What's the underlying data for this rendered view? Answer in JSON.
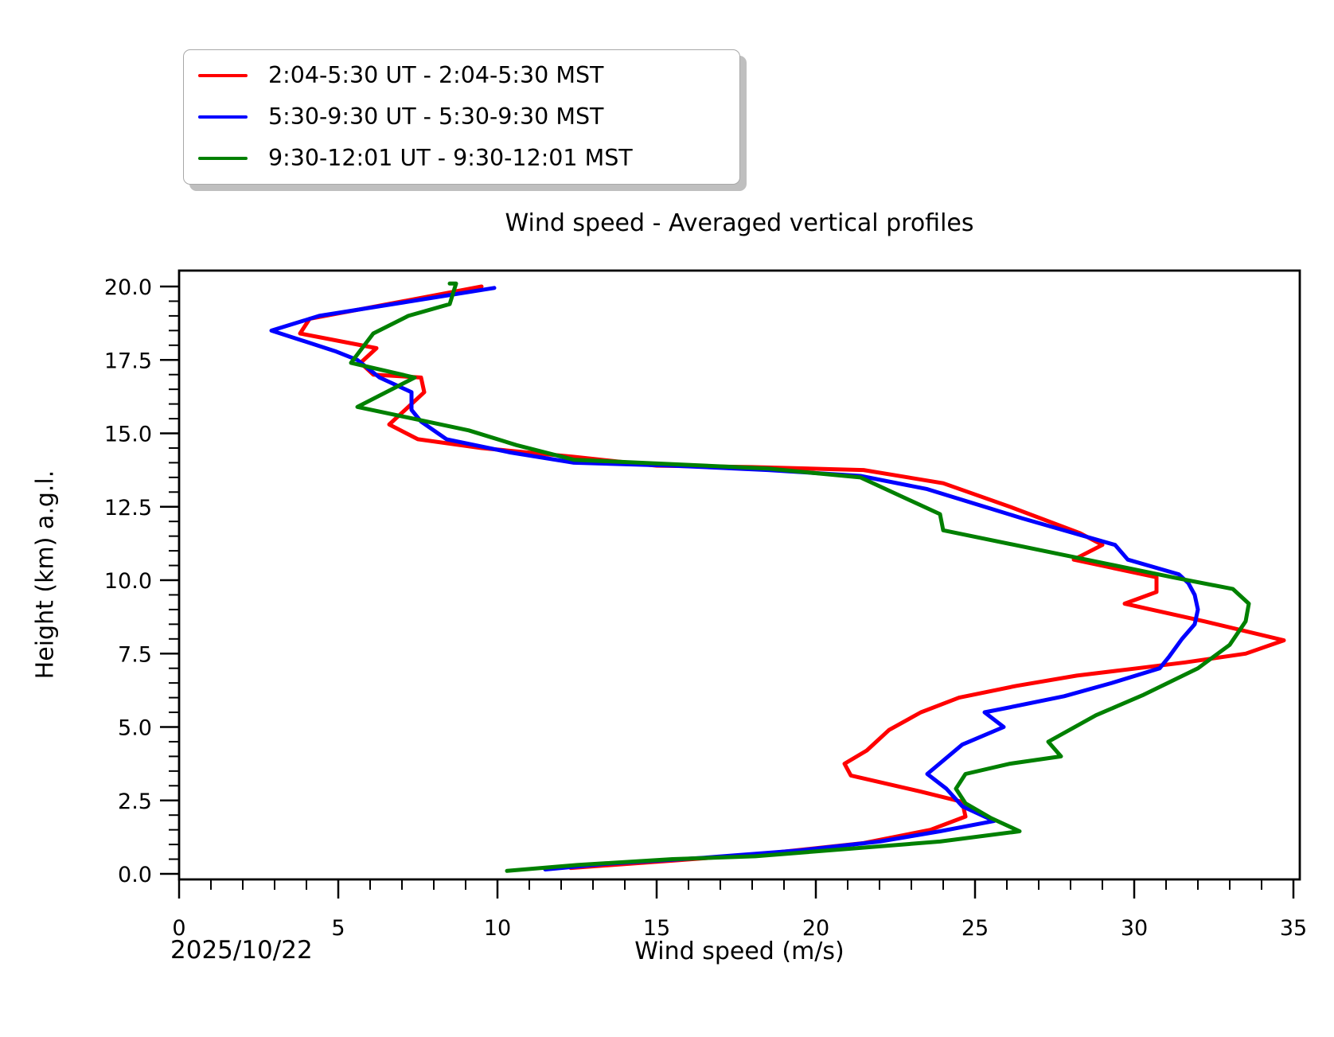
{
  "figure": {
    "title": "Wind speed - Averaged vertical profiles",
    "xlabel": "Wind speed (m/s)",
    "ylabel": "Height (km) a.g.l.",
    "date_label": "2025/10/22"
  },
  "legend": {
    "position": "upper left, outside axes",
    "items": [
      {
        "label": "2:04-5:30 UT - 2:04-5:30 MST",
        "color": "#ff0000"
      },
      {
        "label": "5:30-9:30 UT - 5:30-9:30 MST",
        "color": "#0000ff"
      },
      {
        "label": "9:30-12:01 UT - 9:30-12:01 MST",
        "color": "#008000"
      }
    ]
  },
  "axes": {
    "x": {
      "min": 0,
      "max": 35.2,
      "major_tick_values": [
        0,
        5,
        10,
        15,
        20,
        25,
        30,
        35
      ],
      "major_tick_labels": [
        "0",
        "5",
        "10",
        "15",
        "20",
        "25",
        "30",
        "35"
      ],
      "minor_tick_step": 1
    },
    "y": {
      "min": -0.2,
      "max": 20.55,
      "major_tick_values": [
        0,
        2.5,
        5,
        7.5,
        10,
        12.5,
        15,
        17.5,
        20
      ],
      "major_tick_labels": [
        "0.0",
        "2.5",
        "5.0",
        "7.5",
        "10.0",
        "12.5",
        "15.0",
        "17.5",
        "20.0"
      ],
      "minor_tick_step": 0.5
    }
  },
  "chart_data": {
    "type": "line",
    "title": "Wind speed - Averaged vertical profiles",
    "xlabel": "Wind speed (m/s)",
    "ylabel": "Height (km) a.g.l.",
    "date": "2025/10/22",
    "xlim": [
      0,
      35.2
    ],
    "ylim": [
      -0.2,
      20.55
    ],
    "grid": false,
    "legend_position": "upper left outside",
    "point_format": "[wind_speed_m_s, height_km]",
    "series": [
      {
        "name": "2:04-5:30 UT - 2:04-5:30 MST",
        "color": "#ff0000",
        "points": [
          [
            12.3,
            0.2
          ],
          [
            15.5,
            0.45
          ],
          [
            18.5,
            0.7
          ],
          [
            21.5,
            1.05
          ],
          [
            23.6,
            1.5
          ],
          [
            24.7,
            1.95
          ],
          [
            24.6,
            2.45
          ],
          [
            23.3,
            2.8
          ],
          [
            21.1,
            3.35
          ],
          [
            20.9,
            3.75
          ],
          [
            21.6,
            4.2
          ],
          [
            22.3,
            4.9
          ],
          [
            23.3,
            5.5
          ],
          [
            24.5,
            6.0
          ],
          [
            26.3,
            6.4
          ],
          [
            28.2,
            6.75
          ],
          [
            30.1,
            7.0
          ],
          [
            31.6,
            7.2
          ],
          [
            33.5,
            7.5
          ],
          [
            34.7,
            7.95
          ],
          [
            32.2,
            8.6
          ],
          [
            29.7,
            9.2
          ],
          [
            30.7,
            9.6
          ],
          [
            30.7,
            10.1
          ],
          [
            28.1,
            10.7
          ],
          [
            29.0,
            11.2
          ],
          [
            28.3,
            11.6
          ],
          [
            26.1,
            12.5
          ],
          [
            24.0,
            13.3
          ],
          [
            21.5,
            13.75
          ],
          [
            18.0,
            13.85
          ],
          [
            15.0,
            13.9
          ],
          [
            12.4,
            14.2
          ],
          [
            9.5,
            14.5
          ],
          [
            7.5,
            14.8
          ],
          [
            6.6,
            15.3
          ],
          [
            6.9,
            15.6
          ],
          [
            7.7,
            16.4
          ],
          [
            7.6,
            16.9
          ],
          [
            6.1,
            17.0
          ],
          [
            5.7,
            17.4
          ],
          [
            6.2,
            17.9
          ],
          [
            3.8,
            18.4
          ],
          [
            4.1,
            18.9
          ],
          [
            9.5,
            20.0
          ]
        ]
      },
      {
        "name": "5:30-9:30 UT - 5:30-9:30 MST",
        "color": "#0000ff",
        "points": [
          [
            11.5,
            0.15
          ],
          [
            13.5,
            0.35
          ],
          [
            16.5,
            0.55
          ],
          [
            19.5,
            0.8
          ],
          [
            22.0,
            1.1
          ],
          [
            23.9,
            1.45
          ],
          [
            25.6,
            1.8
          ],
          [
            24.6,
            2.3
          ],
          [
            24.1,
            2.9
          ],
          [
            23.5,
            3.4
          ],
          [
            24.6,
            4.4
          ],
          [
            25.9,
            5.0
          ],
          [
            25.3,
            5.5
          ],
          [
            26.0,
            5.65
          ],
          [
            27.8,
            6.05
          ],
          [
            29.3,
            6.5
          ],
          [
            30.8,
            7.0
          ],
          [
            31.1,
            7.4
          ],
          [
            31.5,
            8.0
          ],
          [
            31.9,
            8.5
          ],
          [
            32.0,
            9.0
          ],
          [
            31.9,
            9.5
          ],
          [
            31.7,
            9.9
          ],
          [
            31.4,
            10.2
          ],
          [
            29.8,
            10.7
          ],
          [
            29.4,
            11.2
          ],
          [
            26.5,
            12.1
          ],
          [
            23.5,
            13.1
          ],
          [
            21.4,
            13.55
          ],
          [
            18.5,
            13.75
          ],
          [
            15.5,
            13.9
          ],
          [
            12.4,
            14.0
          ],
          [
            10.4,
            14.35
          ],
          [
            8.4,
            14.8
          ],
          [
            7.6,
            15.4
          ],
          [
            7.3,
            15.8
          ],
          [
            7.3,
            16.4
          ],
          [
            6.3,
            16.9
          ],
          [
            5.6,
            17.5
          ],
          [
            4.9,
            17.8
          ],
          [
            2.9,
            18.5
          ],
          [
            4.4,
            19.0
          ],
          [
            9.9,
            19.95
          ]
        ]
      },
      {
        "name": "9:30-12:01 UT - 9:30-12:01 MST",
        "color": "#008000",
        "points": [
          [
            10.3,
            0.1
          ],
          [
            12.5,
            0.3
          ],
          [
            15.5,
            0.5
          ],
          [
            18.1,
            0.6
          ],
          [
            21.0,
            0.85
          ],
          [
            23.9,
            1.1
          ],
          [
            26.4,
            1.45
          ],
          [
            25.5,
            1.9
          ],
          [
            24.7,
            2.4
          ],
          [
            24.4,
            2.9
          ],
          [
            24.7,
            3.4
          ],
          [
            26.1,
            3.75
          ],
          [
            27.7,
            4.0
          ],
          [
            27.3,
            4.5
          ],
          [
            28.8,
            5.4
          ],
          [
            30.3,
            6.1
          ],
          [
            32.0,
            7.0
          ],
          [
            33.0,
            7.8
          ],
          [
            33.5,
            8.6
          ],
          [
            33.6,
            9.2
          ],
          [
            33.1,
            9.7
          ],
          [
            31.2,
            10.1
          ],
          [
            27.6,
            10.9
          ],
          [
            24.0,
            11.7
          ],
          [
            23.9,
            12.25
          ],
          [
            21.4,
            13.5
          ],
          [
            18.5,
            13.8
          ],
          [
            15.5,
            13.95
          ],
          [
            12.4,
            14.1
          ],
          [
            10.6,
            14.6
          ],
          [
            9.1,
            15.1
          ],
          [
            5.6,
            15.9
          ],
          [
            7.4,
            16.9
          ],
          [
            5.4,
            17.4
          ],
          [
            6.1,
            18.4
          ],
          [
            7.2,
            19.0
          ],
          [
            8.5,
            19.4
          ],
          [
            8.7,
            20.1
          ],
          [
            8.5,
            20.1
          ]
        ]
      }
    ]
  }
}
